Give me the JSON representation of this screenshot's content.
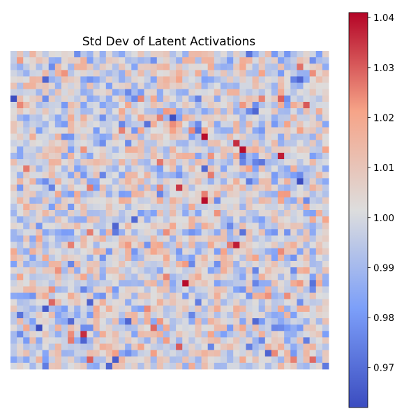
{
  "chart_data": {
    "type": "heatmap",
    "title": "Std Dev of Latent Activations",
    "xlabel": "",
    "ylabel": "",
    "colormap": "coolwarm",
    "rows": 50,
    "cols": 50,
    "vmin": 0.962,
    "vmax": 1.041,
    "colorbar_ticks": [
      0.97,
      0.98,
      0.99,
      1.0,
      1.01,
      1.02,
      1.03,
      1.04
    ],
    "colorbar_labels": [
      "0.97",
      "0.98",
      "0.99",
      "1.00",
      "1.01",
      "1.02",
      "1.03",
      "1.04"
    ],
    "grid": false,
    "axes_visible": false,
    "center_value": 1.0,
    "typical_spread": 0.011,
    "notable_cells": [
      {
        "row": 13,
        "col": 30,
        "value": 1.04
      },
      {
        "row": 15,
        "col": 36,
        "value": 1.04
      },
      {
        "row": 16,
        "col": 42,
        "value": 1.038
      },
      {
        "row": 23,
        "col": 30,
        "value": 1.04
      },
      {
        "row": 30,
        "col": 35,
        "value": 1.038
      },
      {
        "row": 36,
        "col": 27,
        "value": 1.04
      },
      {
        "row": 44,
        "col": 11,
        "value": 1.036
      },
      {
        "row": 42,
        "col": 18,
        "value": 0.968
      },
      {
        "row": 47,
        "col": 40,
        "value": 0.968
      },
      {
        "row": 48,
        "col": 16,
        "value": 0.966
      },
      {
        "row": 49,
        "col": 15,
        "value": 0.968
      },
      {
        "row": 4,
        "col": 5,
        "value": 0.968
      },
      {
        "row": 4,
        "col": 45,
        "value": 0.968
      }
    ]
  }
}
